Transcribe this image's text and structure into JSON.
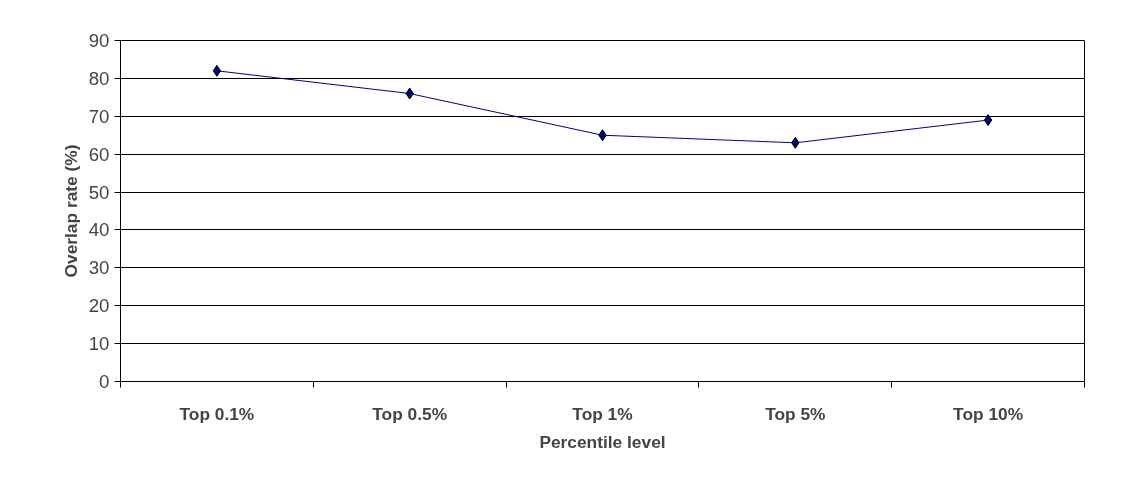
{
  "chart_data": {
    "type": "line",
    "xlabel": "Percentile level",
    "ylabel": "Overlap rate (%)",
    "categories": [
      "Top 0.1%",
      "Top 0.5%",
      "Top 1%",
      "Top 5%",
      "Top 10%"
    ],
    "series": [
      {
        "color": "#000080",
        "values": [
          82,
          76,
          65,
          63,
          69
        ]
      }
    ],
    "ylim": [
      0,
      90
    ],
    "yticks": [
      0,
      10,
      20,
      30,
      40,
      50,
      60,
      70,
      80,
      90
    ],
    "grid": "y",
    "marker": "diamond",
    "line_style": "solid"
  }
}
